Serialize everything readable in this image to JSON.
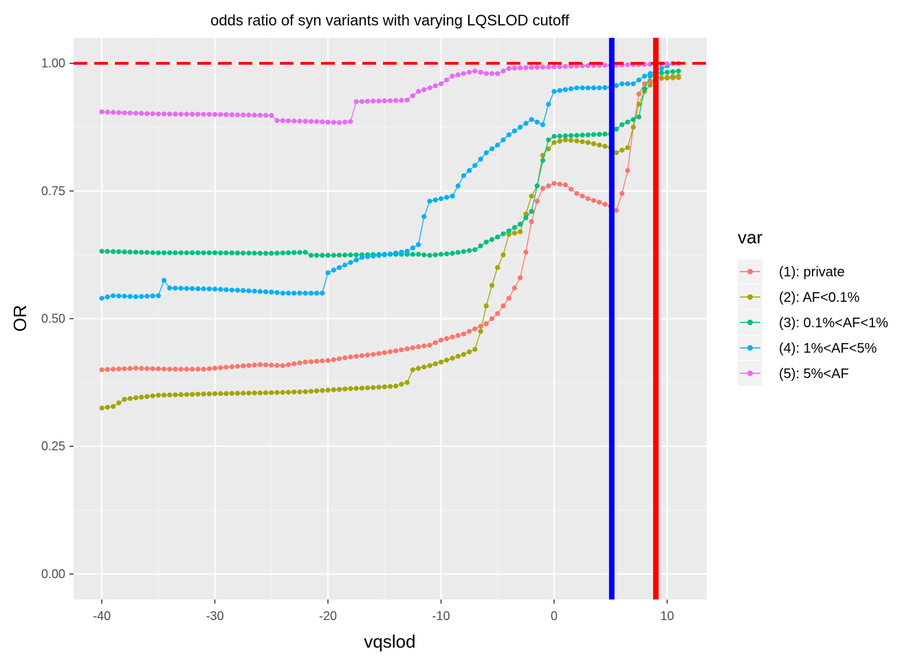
{
  "chart_data": {
    "type": "line",
    "title": "odds ratio of syn variants with varying LQSLOD cutoff",
    "xlabel": "vqslod",
    "ylabel": "OR",
    "xlim": [
      -42.5,
      13.5
    ],
    "ylim": [
      -0.05,
      1.05
    ],
    "x_ticks": [
      -40,
      -30,
      -20,
      -10,
      0,
      10
    ],
    "y_ticks": [
      0.0,
      0.25,
      0.5,
      0.75,
      1.0
    ],
    "x_tick_labels": [
      "-40",
      "-30",
      "-20",
      "-10",
      "0",
      "10"
    ],
    "y_tick_labels": [
      "0.00",
      "0.25",
      "0.50",
      "0.75",
      "1.00"
    ],
    "grid": true,
    "legend": {
      "title": "var",
      "position": "right"
    },
    "reference_lines": {
      "horizontal": {
        "y": 1.0,
        "color": "#ff0000",
        "style": "dashed"
      },
      "vertical": [
        {
          "x": 5.1,
          "color": "#0000ff"
        },
        {
          "x": 9.0,
          "color": "#ff0000"
        }
      ]
    },
    "series": [
      {
        "name": "(1): private",
        "color": "#F8766D",
        "points": [
          [
            -40,
            0.4
          ],
          [
            -37,
            0.403
          ],
          [
            -34,
            0.401
          ],
          [
            -31,
            0.401
          ],
          [
            -29,
            0.405
          ],
          [
            -26,
            0.41
          ],
          [
            -24,
            0.408
          ],
          [
            -22,
            0.415
          ],
          [
            -20,
            0.418
          ],
          [
            -18,
            0.425
          ],
          [
            -16,
            0.43
          ],
          [
            -14,
            0.437
          ],
          [
            -12,
            0.445
          ],
          [
            -11,
            0.448
          ],
          [
            -10,
            0.458
          ],
          [
            -8,
            0.47
          ],
          [
            -7,
            0.48
          ],
          [
            -6,
            0.49
          ],
          [
            -5,
            0.51
          ],
          [
            -4,
            0.54
          ],
          [
            -3,
            0.58
          ],
          [
            -2.5,
            0.63
          ],
          [
            -2,
            0.69
          ],
          [
            -1.5,
            0.73
          ],
          [
            -1,
            0.755
          ],
          [
            0,
            0.765
          ],
          [
            1,
            0.762
          ],
          [
            2,
            0.745
          ],
          [
            3,
            0.735
          ],
          [
            4,
            0.728
          ],
          [
            5,
            0.72
          ],
          [
            5.5,
            0.712
          ],
          [
            6,
            0.745
          ],
          [
            6.5,
            0.79
          ],
          [
            7,
            0.875
          ],
          [
            7.5,
            0.94
          ],
          [
            8,
            0.96
          ],
          [
            9,
            0.97
          ],
          [
            11,
            0.972
          ]
        ]
      },
      {
        "name": "(2): AF<0.1%",
        "color": "#A3A500",
        "points": [
          [
            -40,
            0.325
          ],
          [
            -39,
            0.328
          ],
          [
            -38,
            0.342
          ],
          [
            -37,
            0.345
          ],
          [
            -35,
            0.35
          ],
          [
            -30,
            0.353
          ],
          [
            -25,
            0.355
          ],
          [
            -22,
            0.357
          ],
          [
            -20,
            0.36
          ],
          [
            -18,
            0.363
          ],
          [
            -16,
            0.365
          ],
          [
            -14,
            0.368
          ],
          [
            -13,
            0.375
          ],
          [
            -12.5,
            0.4
          ],
          [
            -11,
            0.408
          ],
          [
            -10,
            0.415
          ],
          [
            -8,
            0.43
          ],
          [
            -7,
            0.44
          ],
          [
            -6.5,
            0.475
          ],
          [
            -6,
            0.525
          ],
          [
            -5.5,
            0.565
          ],
          [
            -5,
            0.6
          ],
          [
            -4.5,
            0.625
          ],
          [
            -4,
            0.665
          ],
          [
            -3,
            0.67
          ],
          [
            -2,
            0.74
          ],
          [
            -1.5,
            0.76
          ],
          [
            -1,
            0.82
          ],
          [
            0,
            0.845
          ],
          [
            1,
            0.85
          ],
          [
            2,
            0.848
          ],
          [
            3,
            0.845
          ],
          [
            4,
            0.84
          ],
          [
            5,
            0.835
          ],
          [
            5.5,
            0.825
          ],
          [
            6.5,
            0.835
          ],
          [
            7,
            0.875
          ],
          [
            7.5,
            0.92
          ],
          [
            8,
            0.945
          ],
          [
            9,
            0.97
          ],
          [
            11,
            0.975
          ]
        ]
      },
      {
        "name": "(3): 0.1%<AF<1%",
        "color": "#00BF7D",
        "points": [
          [
            -40,
            0.632
          ],
          [
            -35,
            0.629
          ],
          [
            -30,
            0.629
          ],
          [
            -25,
            0.628
          ],
          [
            -22,
            0.63
          ],
          [
            -21.5,
            0.624
          ],
          [
            -20,
            0.624
          ],
          [
            -15,
            0.626
          ],
          [
            -12,
            0.626
          ],
          [
            -11,
            0.624
          ],
          [
            -9,
            0.628
          ],
          [
            -7,
            0.635
          ],
          [
            -6,
            0.65
          ],
          [
            -5,
            0.66
          ],
          [
            -4,
            0.672
          ],
          [
            -3,
            0.685
          ],
          [
            -2,
            0.71
          ],
          [
            -1.5,
            0.76
          ],
          [
            -1,
            0.81
          ],
          [
            -0.5,
            0.85
          ],
          [
            0,
            0.857
          ],
          [
            1,
            0.858
          ],
          [
            3,
            0.86
          ],
          [
            5,
            0.862
          ],
          [
            6,
            0.88
          ],
          [
            6.5,
            0.885
          ],
          [
            7,
            0.89
          ],
          [
            7.5,
            0.895
          ],
          [
            8,
            0.95
          ],
          [
            8.5,
            0.975
          ],
          [
            9,
            0.98
          ],
          [
            11,
            0.985
          ]
        ]
      },
      {
        "name": "(4): 1%<AF<5%",
        "color": "#00B0F6",
        "points": [
          [
            -40,
            0.54
          ],
          [
            -39,
            0.545
          ],
          [
            -37,
            0.543
          ],
          [
            -35,
            0.545
          ],
          [
            -34.5,
            0.575
          ],
          [
            -34,
            0.56
          ],
          [
            -30,
            0.558
          ],
          [
            -25,
            0.552
          ],
          [
            -24,
            0.55
          ],
          [
            -20.5,
            0.55
          ],
          [
            -20,
            0.59
          ],
          [
            -19,
            0.6
          ],
          [
            -17,
            0.62
          ],
          [
            -15,
            0.625
          ],
          [
            -13,
            0.632
          ],
          [
            -12,
            0.645
          ],
          [
            -11.5,
            0.7
          ],
          [
            -11,
            0.73
          ],
          [
            -10,
            0.735
          ],
          [
            -9,
            0.74
          ],
          [
            -8,
            0.78
          ],
          [
            -7,
            0.8
          ],
          [
            -6,
            0.825
          ],
          [
            -5,
            0.84
          ],
          [
            -4,
            0.86
          ],
          [
            -3,
            0.875
          ],
          [
            -2,
            0.89
          ],
          [
            -1,
            0.88
          ],
          [
            -0.5,
            0.92
          ],
          [
            0,
            0.945
          ],
          [
            2,
            0.952
          ],
          [
            4,
            0.952
          ],
          [
            5,
            0.953
          ],
          [
            6,
            0.96
          ],
          [
            7,
            0.96
          ],
          [
            8,
            0.975
          ],
          [
            9,
            0.985
          ],
          [
            10.5,
            1.0
          ]
        ]
      },
      {
        "name": "(5): 5%<AF",
        "color": "#E76BF3",
        "points": [
          [
            -40,
            0.905
          ],
          [
            -38,
            0.903
          ],
          [
            -35,
            0.901
          ],
          [
            -30,
            0.9
          ],
          [
            -25,
            0.898
          ],
          [
            -24.5,
            0.888
          ],
          [
            -21,
            0.886
          ],
          [
            -19,
            0.884
          ],
          [
            -18,
            0.886
          ],
          [
            -17.5,
            0.925
          ],
          [
            -13,
            0.928
          ],
          [
            -12,
            0.945
          ],
          [
            -11,
            0.952
          ],
          [
            -10,
            0.96
          ],
          [
            -9,
            0.975
          ],
          [
            -8,
            0.98
          ],
          [
            -7,
            0.985
          ],
          [
            -6,
            0.98
          ],
          [
            -5,
            0.98
          ],
          [
            -4,
            0.99
          ],
          [
            -2,
            0.992
          ],
          [
            0,
            0.993
          ],
          [
            2,
            0.995
          ],
          [
            4,
            0.996
          ],
          [
            6,
            0.997
          ],
          [
            8,
            0.998
          ],
          [
            10,
            0.999
          ],
          [
            11,
            1.0
          ]
        ]
      }
    ]
  }
}
